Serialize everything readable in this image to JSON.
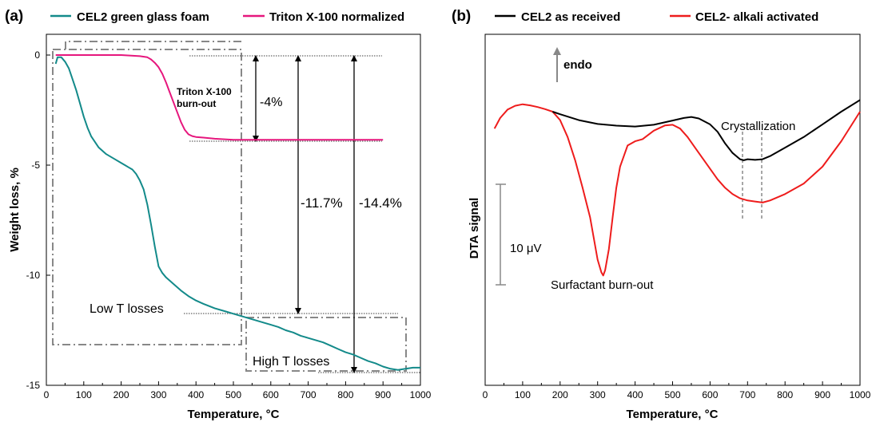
{
  "chart_data": [
    {
      "panel_label": "(a)",
      "type": "line",
      "xlabel": "Temperature, °C",
      "ylabel": "Weight loss, %",
      "xlim": [
        0,
        1000
      ],
      "ylim": [
        -15,
        0.4
      ],
      "x_ticks": [
        0,
        100,
        200,
        300,
        400,
        500,
        600,
        700,
        800,
        900,
        1000
      ],
      "y_ticks": [
        0,
        -5,
        -10,
        -15
      ],
      "grid": false,
      "legend_placement": "top",
      "series": [
        {
          "name": "CEL2 green glass foam",
          "color": "#138a8a",
          "x": [
            25,
            30,
            40,
            50,
            60,
            70,
            80,
            90,
            100,
            110,
            120,
            140,
            160,
            180,
            200,
            210,
            220,
            230,
            240,
            250,
            260,
            270,
            280,
            290,
            300,
            310,
            320,
            340,
            360,
            380,
            400,
            420,
            450,
            480,
            500,
            520,
            540,
            560,
            580,
            600,
            620,
            640,
            660,
            680,
            700,
            720,
            740,
            760,
            780,
            800,
            820,
            840,
            860,
            880,
            900,
            920,
            940,
            960,
            980,
            1000
          ],
          "y": [
            -0.4,
            -0.1,
            -0.1,
            -0.3,
            -0.6,
            -1.1,
            -1.6,
            -2.2,
            -2.8,
            -3.3,
            -3.7,
            -4.2,
            -4.5,
            -4.7,
            -4.9,
            -5.0,
            -5.1,
            -5.2,
            -5.4,
            -5.7,
            -6.1,
            -6.8,
            -7.7,
            -8.7,
            -9.6,
            -9.9,
            -10.1,
            -10.4,
            -10.7,
            -10.95,
            -11.15,
            -11.3,
            -11.5,
            -11.65,
            -11.75,
            -11.85,
            -11.95,
            -12.05,
            -12.15,
            -12.25,
            -12.35,
            -12.5,
            -12.6,
            -12.75,
            -12.85,
            -12.95,
            -13.05,
            -13.2,
            -13.35,
            -13.5,
            -13.6,
            -13.75,
            -13.9,
            -14.0,
            -14.15,
            -14.25,
            -14.3,
            -14.25,
            -14.2,
            -14.2
          ]
        },
        {
          "name": "Triton X-100 normalized",
          "color": "#e6177d",
          "x": [
            25,
            100,
            200,
            250,
            270,
            280,
            290,
            300,
            310,
            320,
            330,
            340,
            350,
            360,
            370,
            380,
            390,
            400,
            420,
            450,
            500,
            600,
            700,
            800,
            900
          ],
          "y": [
            0,
            0,
            0,
            -0.05,
            -0.1,
            -0.2,
            -0.35,
            -0.55,
            -0.85,
            -1.25,
            -1.7,
            -2.15,
            -2.6,
            -3.05,
            -3.4,
            -3.6,
            -3.68,
            -3.72,
            -3.75,
            -3.8,
            -3.85,
            -3.85,
            -3.85,
            -3.85,
            -3.85
          ]
        }
      ],
      "annotations": [
        "Triton X-100",
        "burn-out",
        "-4%",
        "-11.7%",
        "-14.4%",
        "Low T losses",
        "High T losses"
      ]
    },
    {
      "panel_label": "(b)",
      "type": "line",
      "xlabel": "Temperature, °C",
      "ylabel": "DTA signal",
      "xlim": [
        0,
        1000
      ],
      "x_ticks": [
        0,
        100,
        200,
        300,
        400,
        500,
        600,
        700,
        800,
        900,
        1000
      ],
      "grid": false,
      "legend_placement": "top",
      "series": [
        {
          "name": "CEL2 as received",
          "color": "#000000",
          "x": [
            180,
            200,
            250,
            300,
            350,
            400,
            450,
            500,
            530,
            550,
            570,
            600,
            620,
            640,
            660,
            680,
            690,
            700,
            720,
            740,
            760,
            800,
            850,
            900,
            950,
            1000
          ],
          "y": [
            0.0,
            -0.12,
            -0.4,
            -0.58,
            -0.66,
            -0.7,
            -0.62,
            -0.42,
            -0.3,
            -0.25,
            -0.32,
            -0.6,
            -0.95,
            -1.5,
            -1.95,
            -2.25,
            -2.3,
            -2.25,
            -2.28,
            -2.25,
            -2.1,
            -1.7,
            -1.2,
            -0.6,
            0.0,
            0.55
          ]
        },
        {
          "name": "CEL2- alkali activated",
          "color": "#ee1c1c",
          "x": [
            25,
            40,
            60,
            80,
            100,
            120,
            140,
            160,
            180,
            200,
            220,
            240,
            260,
            280,
            290,
            300,
            310,
            315,
            320,
            330,
            340,
            350,
            360,
            380,
            400,
            420,
            450,
            480,
            500,
            520,
            540,
            560,
            580,
            600,
            620,
            640,
            660,
            680,
            700,
            720,
            740,
            760,
            800,
            850,
            900,
            950,
            1000
          ],
          "y": [
            -0.8,
            -0.3,
            0.1,
            0.28,
            0.35,
            0.3,
            0.22,
            0.12,
            0.0,
            -0.4,
            -1.2,
            -2.3,
            -3.6,
            -5.0,
            -6.0,
            -7.0,
            -7.6,
            -7.75,
            -7.5,
            -6.5,
            -5.0,
            -3.6,
            -2.6,
            -1.6,
            -1.4,
            -1.3,
            -0.9,
            -0.65,
            -0.62,
            -0.8,
            -1.2,
            -1.7,
            -2.2,
            -2.7,
            -3.2,
            -3.6,
            -3.9,
            -4.1,
            -4.2,
            -4.25,
            -4.3,
            -4.2,
            -3.9,
            -3.4,
            -2.6,
            -1.4,
            0.0
          ]
        }
      ],
      "scale_bar_label": "10 μV",
      "annotations": [
        "endo",
        "Crystallization",
        "Surfactant burn-out"
      ]
    }
  ]
}
